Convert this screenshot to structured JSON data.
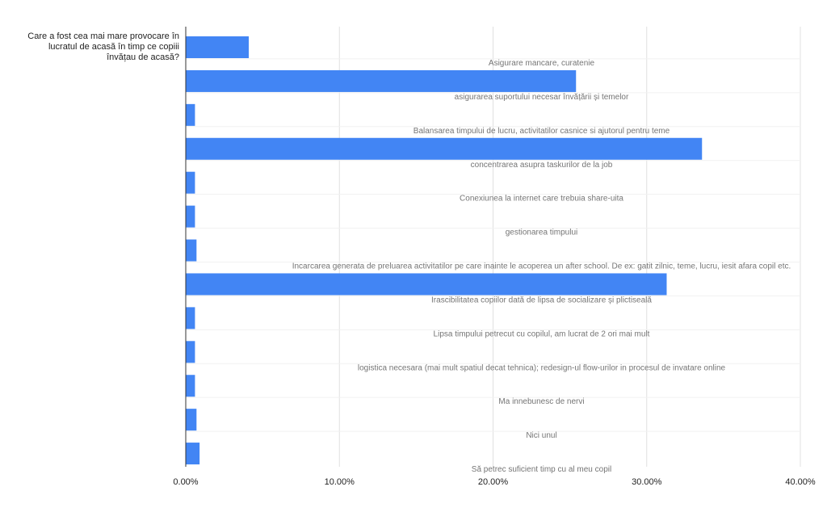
{
  "chart_data": {
    "type": "bar",
    "orientation": "horizontal",
    "ylabel": "Care a fost cea mai mare provocare în lucratul de acasă în timp ce copiii învățau de acasă?",
    "ylabel_lines": [
      "Care a fost cea mai mare provocare în",
      "lucratul de acasă în timp ce copiii",
      "învățau de acasă?"
    ],
    "categories": [
      "Asigurare mancare, curatenie",
      "asigurarea suportului necesar învățării și temelor",
      "Balansarea timpului de lucru, activitatilor casnice si ajutorul pentru teme",
      "concentrarea asupra taskurilor de la job",
      "Conexiunea la internet care trebuia share-uita",
      "gestionarea timpului",
      "Incarcarea generata de preluarea activitatilor pe care inainte le acoperea un after school. De ex: gatit zilnic, teme, lucru, iesit afara copil etc.",
      "Irascibilitatea copiilor dată de lipsa de socializare și plictiseală",
      "Lipsa timpului petrecut cu copilul, am lucrat de 2 ori mai mult",
      "logistica necesara (mai mult spatiul decat tehnica); redesign-ul flow-urilor in procesul de invatare online",
      "Ma innebunesc de nervi",
      "Nici unul",
      "Să petrec suficient timp cu al meu copil"
    ],
    "values": [
      4.1,
      25.4,
      0.6,
      33.6,
      0.6,
      0.6,
      0.7,
      31.3,
      0.6,
      0.6,
      0.6,
      0.7,
      0.9
    ],
    "xlim": [
      0,
      40
    ],
    "x_ticks": [
      0,
      10,
      20,
      30,
      40
    ],
    "x_tick_labels": [
      "0.00%",
      "10.00%",
      "20.00%",
      "30.00%",
      "40.00%"
    ],
    "grid": true,
    "legend": "none",
    "colors": {
      "bar": "#4285f4",
      "grid": "#e0e0e0",
      "axis": "#333333"
    }
  }
}
